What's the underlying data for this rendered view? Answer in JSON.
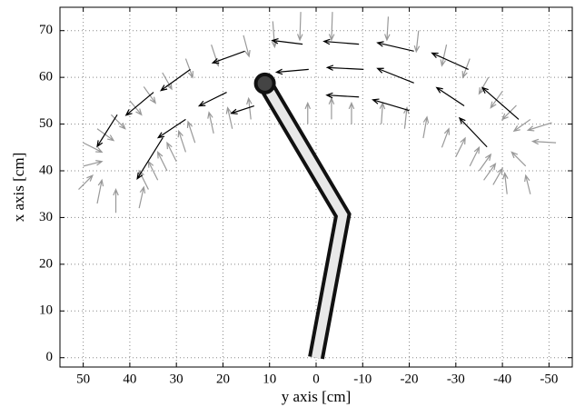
{
  "chart_data": {
    "type": "quiver",
    "xlabel": "y axis [cm]",
    "ylabel": "x axis [cm]",
    "xlim": [
      55,
      -55
    ],
    "ylim": [
      -2,
      75
    ],
    "xticks": [
      50,
      40,
      30,
      20,
      10,
      0,
      -10,
      -20,
      -30,
      -40,
      -50
    ],
    "yticks": [
      0,
      10,
      20,
      30,
      40,
      50,
      60,
      70
    ],
    "grid": true,
    "series": [
      {
        "color": "#999999",
        "x": [
          3.3,
          -3.5,
          9.3,
          15.6,
          22.5,
          28,
          33,
          37,
          40,
          44,
          47,
          50,
          -15.5,
          -22,
          -28,
          -33,
          -37,
          -40,
          -43,
          -46,
          -50.6,
          -51.5,
          -45,
          -46,
          -41,
          51,
          50,
          43,
          38,
          47,
          34,
          32,
          30,
          28,
          26,
          22,
          18,
          14,
          36,
          1.8,
          -3.3,
          -7.6,
          -14,
          -19,
          -23,
          -27,
          -30,
          -33,
          -35,
          -36,
          -38
        ],
        "y": [
          74,
          74,
          72,
          69,
          67,
          64,
          61,
          58,
          55,
          52,
          49,
          46,
          73,
          70,
          67,
          64,
          60,
          57,
          54,
          51,
          50.3,
          46,
          41,
          35,
          35,
          36,
          41,
          31,
          32,
          33,
          38,
          40,
          42,
          44,
          46,
          48,
          49,
          51,
          36,
          50,
          51,
          50,
          50,
          49,
          47,
          45,
          43,
          41,
          40,
          38,
          37
        ],
        "u": [
          0.2,
          0.2,
          -0.4,
          -1.2,
          -1.5,
          -1.5,
          -2,
          -2.5,
          -2.5,
          -3,
          -3.5,
          -4,
          0.3,
          0.5,
          1,
          1.5,
          2,
          2.5,
          3,
          3.5,
          5.1,
          5,
          3,
          1,
          0.5,
          -3,
          -4,
          0,
          -1,
          -1,
          2,
          2,
          2,
          1.5,
          1.5,
          1,
          1,
          0.5,
          2,
          0,
          0,
          0,
          -0.3,
          -0.5,
          -0.8,
          -1.5,
          -2,
          -2,
          -2.5,
          -2.5,
          -2
        ],
        "v": [
          -6,
          -6,
          -5.5,
          -4.5,
          -4.5,
          -4,
          -3.5,
          -3.5,
          -3,
          -3,
          -2.5,
          -2,
          -5,
          -4.5,
          -4.5,
          -4,
          -3.5,
          -3.5,
          -3,
          -2.5,
          -1.6,
          0.3,
          3,
          4,
          4.5,
          3,
          1,
          5,
          4.5,
          5,
          4,
          4,
          4,
          4.5,
          4.5,
          4.5,
          4.5,
          4.5,
          4,
          4.5,
          4.5,
          4.5,
          4.5,
          4.5,
          4.5,
          4,
          4,
          4,
          3.5,
          3.5,
          3.5
        ]
      },
      {
        "color": "#000000",
        "x": [
          2.9,
          -9.2,
          -21,
          -32.7,
          -43.5,
          15.3,
          27,
          34.9,
          42.7,
          1.6,
          -10.2,
          -21,
          -31.8,
          -36.7,
          -9.2,
          -20,
          19.2,
          28,
          32.9,
          13.3
        ],
        "y": [
          67.1,
          67.1,
          65.6,
          61.7,
          51,
          65.6,
          61.7,
          56.8,
          52,
          61.7,
          61.7,
          58.8,
          53.9,
          45.1,
          55.8,
          52.9,
          56.8,
          51,
          47.1,
          53.9
        ],
        "u": [
          6.5,
          7.5,
          7.8,
          7.8,
          7.8,
          6.9,
          6.3,
          5.9,
          4.3,
          6.9,
          7.8,
          7.8,
          5.9,
          5.9,
          6.9,
          7.8,
          5.9,
          5.9,
          5.5,
          4.9
        ],
        "v": [
          0.8,
          0.6,
          1.8,
          3.5,
          6.8,
          -2.5,
          -4.5,
          -4.9,
          -6.8,
          -0.6,
          0.4,
          3.1,
          3.9,
          6.2,
          0.4,
          2.3,
          -2.9,
          -3.9,
          -8.8,
          -1.6
        ]
      }
    ],
    "arm": {
      "x": [
        0,
        -5.7,
        11
      ],
      "y": [
        0,
        30.5,
        58.7
      ]
    }
  }
}
